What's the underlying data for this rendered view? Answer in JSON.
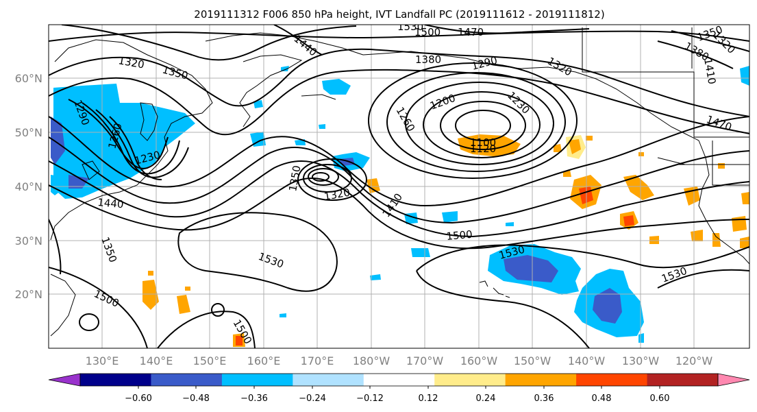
{
  "title": "2019111312 F006 850 hPa height, IVT Landfall PC (2019111612 - 2019111812)",
  "lon_labels": [
    "130°E",
    "140°E",
    "150°E",
    "160°E",
    "170°E",
    "180°W",
    "170°W",
    "160°W",
    "150°W",
    "140°W",
    "130°W",
    "120°W"
  ],
  "lat_labels": [
    "60°N",
    "50°N",
    "40°N",
    "30°N",
    "20°N"
  ],
  "colorbar": {
    "ticks": [
      "−0.60",
      "−0.48",
      "−0.36",
      "−0.24",
      "−0.12",
      "0.12",
      "0.24",
      "0.36",
      "0.48",
      "0.60"
    ],
    "colors": [
      "#9932CC",
      "#00008B",
      "#3A5BC9",
      "#00BFFF",
      "#B0E2FF",
      "#FFFFFF",
      "#FFEC8B",
      "#FFA500",
      "#FF4500",
      "#B22222",
      "#FF88B0"
    ]
  },
  "contour_labels": [
    "1530",
    "1500",
    "1470",
    "1440",
    "1380",
    "1350",
    "1320",
    "1290",
    "1260",
    "1230",
    "1200",
    "1100",
    "1120",
    "1410",
    "1530",
    "1500",
    "1530",
    "1500",
    "1530",
    "1500",
    "1470",
    "1410",
    "1380",
    "1350",
    "1320",
    "1440",
    "1320",
    "1350",
    "1290",
    "1260",
    "1230",
    "1350",
    "1320"
  ]
}
